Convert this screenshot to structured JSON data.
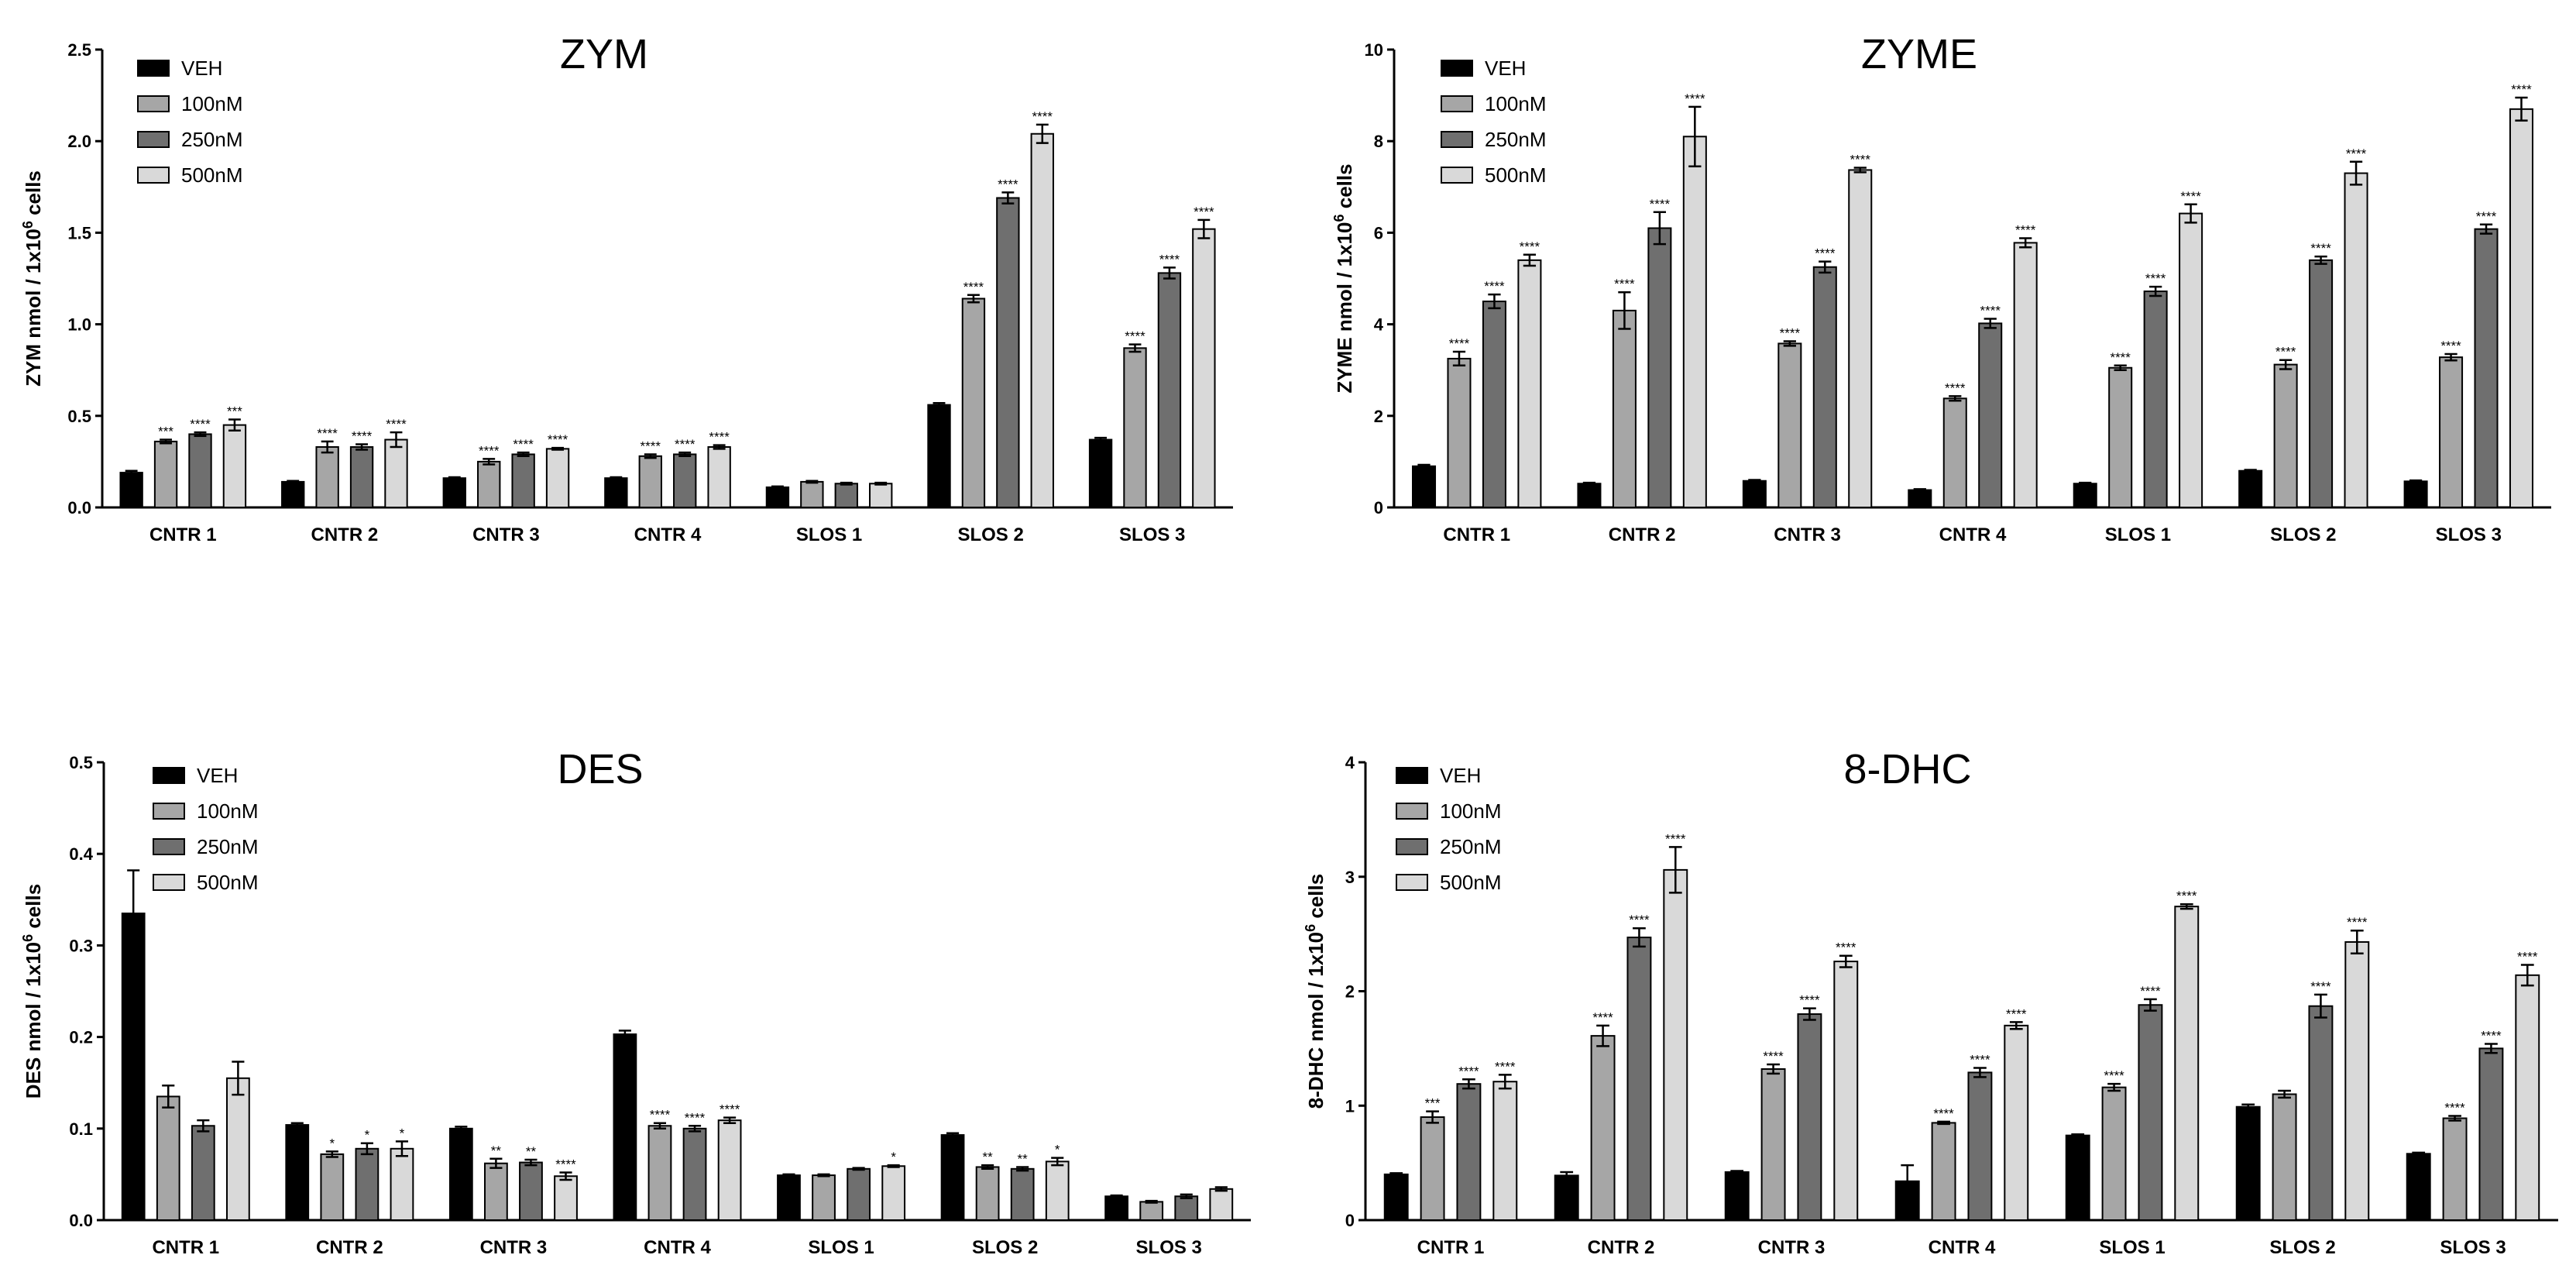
{
  "colors": {
    "VEH": "#000000",
    "100nM": "#a6a6a6",
    "250nM": "#6f6f6f",
    "500nM": "#d9d9d9"
  },
  "chart_data": [
    {
      "type": "bar",
      "title": "ZYM",
      "ylabel": "ZYM nmol  / 1x10^6 cells",
      "ylabel_parts": [
        "ZYM nmol  / 1x10",
        "6",
        " cells"
      ],
      "ylim": [
        0,
        2.5
      ],
      "yticks": [
        "0.0",
        "0.5",
        "1.0",
        "1.5",
        "2.0",
        "2.5"
      ],
      "categories": [
        "CNTR 1",
        "CNTR 2",
        "CNTR 3",
        "CNTR 4",
        "SLOS 1",
        "SLOS 2",
        "SLOS 3"
      ],
      "series": [
        {
          "name": "VEH",
          "values": [
            0.19,
            0.14,
            0.16,
            0.16,
            0.11,
            0.56,
            0.37
          ],
          "errors": [
            0.01,
            0.005,
            0.005,
            0.005,
            0.005,
            0.01,
            0.01
          ],
          "sig": [
            "",
            "",
            "",
            "",
            "",
            "",
            ""
          ]
        },
        {
          "name": "100nM",
          "values": [
            0.36,
            0.33,
            0.25,
            0.28,
            0.14,
            1.14,
            0.87
          ],
          "errors": [
            0.01,
            0.03,
            0.015,
            0.01,
            0.005,
            0.02,
            0.02
          ],
          "sig": [
            "***",
            "****",
            "****",
            "****",
            "",
            "****",
            "****"
          ]
        },
        {
          "name": "250nM",
          "values": [
            0.4,
            0.33,
            0.29,
            0.29,
            0.13,
            1.69,
            1.28
          ],
          "errors": [
            0.01,
            0.015,
            0.01,
            0.01,
            0.005,
            0.03,
            0.03
          ],
          "sig": [
            "****",
            "****",
            "****",
            "****",
            "",
            "****",
            "****"
          ]
        },
        {
          "name": "500nM",
          "values": [
            0.45,
            0.37,
            0.32,
            0.33,
            0.13,
            2.04,
            1.52
          ],
          "errors": [
            0.03,
            0.04,
            0.005,
            0.01,
            0.005,
            0.05,
            0.05
          ],
          "sig": [
            "***",
            "****",
            "****",
            "****",
            "",
            "****",
            "****"
          ]
        }
      ]
    },
    {
      "type": "bar",
      "title": "ZYME",
      "ylabel": "ZYME nmol  / 1x10^6 cells",
      "ylabel_parts": [
        "ZYME nmol  / 1x10",
        "6",
        " cells"
      ],
      "ylim": [
        0,
        10
      ],
      "yticks": [
        "0",
        "2",
        "4",
        "6",
        "8",
        "10"
      ],
      "categories": [
        "CNTR 1",
        "CNTR 2",
        "CNTR 3",
        "CNTR 4",
        "SLOS 1",
        "SLOS 2",
        "SLOS 3"
      ],
      "series": [
        {
          "name": "VEH",
          "values": [
            0.9,
            0.52,
            0.58,
            0.38,
            0.52,
            0.8,
            0.57
          ],
          "errors": [
            0.03,
            0.02,
            0.02,
            0.02,
            0.02,
            0.02,
            0.02
          ],
          "sig": [
            "",
            "",
            "",
            "",
            "",
            "",
            ""
          ]
        },
        {
          "name": "100nM",
          "values": [
            3.25,
            4.3,
            3.58,
            2.38,
            3.05,
            3.12,
            3.28
          ],
          "errors": [
            0.15,
            0.4,
            0.05,
            0.05,
            0.05,
            0.1,
            0.07
          ],
          "sig": [
            "****",
            "****",
            "****",
            "****",
            "****",
            "****",
            "****"
          ]
        },
        {
          "name": "250nM",
          "values": [
            4.5,
            6.1,
            5.25,
            4.02,
            4.72,
            5.4,
            6.08
          ],
          "errors": [
            0.15,
            0.35,
            0.12,
            0.1,
            0.1,
            0.08,
            0.1
          ],
          "sig": [
            "****",
            "****",
            "****",
            "****",
            "****",
            "****",
            "****"
          ]
        },
        {
          "name": "500nM",
          "values": [
            5.4,
            8.1,
            7.37,
            5.78,
            6.42,
            7.3,
            8.7
          ],
          "errors": [
            0.12,
            0.65,
            0.05,
            0.1,
            0.2,
            0.25,
            0.25
          ],
          "sig": [
            "****",
            "****",
            "****",
            "****",
            "****",
            "****",
            "****"
          ]
        }
      ]
    },
    {
      "type": "bar",
      "title": "DES",
      "ylabel": "DES nmol  / 1x10^6 cells",
      "ylabel_parts": [
        "DES nmol  / 1x10",
        "6",
        " cells"
      ],
      "ylim": [
        0,
        0.5
      ],
      "yticks": [
        "0.0",
        "0.1",
        "0.2",
        "0.3",
        "0.4",
        "0.5"
      ],
      "categories": [
        "CNTR 1",
        "CNTR 2",
        "CNTR 3",
        "CNTR 4",
        "SLOS 1",
        "SLOS 2",
        "SLOS 3"
      ],
      "series": [
        {
          "name": "VEH",
          "values": [
            0.335,
            0.104,
            0.1,
            0.203,
            0.049,
            0.093,
            0.026
          ],
          "errors": [
            0.047,
            0.002,
            0.002,
            0.004,
            0.001,
            0.002,
            0.001
          ],
          "sig": [
            "",
            "",
            "",
            "",
            "",
            "",
            ""
          ]
        },
        {
          "name": "100nM",
          "values": [
            0.135,
            0.072,
            0.062,
            0.103,
            0.049,
            0.058,
            0.02
          ],
          "errors": [
            0.012,
            0.003,
            0.005,
            0.003,
            0.001,
            0.002,
            0.001
          ],
          "sig": [
            "",
            "*",
            "**",
            "****",
            "",
            "**",
            ""
          ]
        },
        {
          "name": "250nM",
          "values": [
            0.103,
            0.078,
            0.063,
            0.1,
            0.056,
            0.056,
            0.026
          ],
          "errors": [
            0.006,
            0.006,
            0.003,
            0.003,
            0.001,
            0.002,
            0.002
          ],
          "sig": [
            "",
            "*",
            "**",
            "****",
            "",
            "**",
            ""
          ]
        },
        {
          "name": "500nM",
          "values": [
            0.155,
            0.078,
            0.048,
            0.109,
            0.059,
            0.064,
            0.034
          ],
          "errors": [
            0.018,
            0.008,
            0.004,
            0.003,
            0.001,
            0.004,
            0.002
          ],
          "sig": [
            "",
            "*",
            "****",
            "****",
            "*",
            "*",
            ""
          ]
        }
      ]
    },
    {
      "type": "bar",
      "title": "8-DHC",
      "ylabel": "8-DHC nmol  / 1x10^6 cells",
      "ylabel_parts": [
        "8-DHC nmol  / 1x10",
        "6",
        " cells"
      ],
      "ylim": [
        0,
        4
      ],
      "yticks": [
        "0",
        "1",
        "2",
        "3",
        "4"
      ],
      "categories": [
        "CNTR 1",
        "CNTR 2",
        "CNTR 3",
        "CNTR 4",
        "SLOS 1",
        "SLOS 2",
        "SLOS 3"
      ],
      "series": [
        {
          "name": "VEH",
          "values": [
            0.4,
            0.39,
            0.42,
            0.34,
            0.74,
            0.99,
            0.58
          ],
          "errors": [
            0.01,
            0.03,
            0.01,
            0.14,
            0.01,
            0.02,
            0.01
          ],
          "sig": [
            "",
            "",
            "",
            "",
            "",
            "",
            ""
          ]
        },
        {
          "name": "100nM",
          "values": [
            0.9,
            1.61,
            1.32,
            0.85,
            1.16,
            1.1,
            0.89
          ],
          "errors": [
            0.05,
            0.09,
            0.04,
            0.01,
            0.03,
            0.03,
            0.02
          ],
          "sig": [
            "***",
            "****",
            "****",
            "****",
            "****",
            "",
            "****"
          ]
        },
        {
          "name": "250nM",
          "values": [
            1.19,
            2.47,
            1.8,
            1.29,
            1.88,
            1.87,
            1.5
          ],
          "errors": [
            0.04,
            0.08,
            0.05,
            0.04,
            0.05,
            0.1,
            0.04
          ],
          "sig": [
            "****",
            "****",
            "****",
            "****",
            "****",
            "****",
            "****"
          ]
        },
        {
          "name": "500nM",
          "values": [
            1.21,
            3.06,
            2.26,
            1.7,
            2.74,
            2.43,
            2.14
          ],
          "errors": [
            0.06,
            0.2,
            0.05,
            0.03,
            0.02,
            0.1,
            0.09
          ],
          "sig": [
            "****",
            "****",
            "****",
            "****",
            "****",
            "****",
            "****"
          ]
        }
      ]
    }
  ]
}
